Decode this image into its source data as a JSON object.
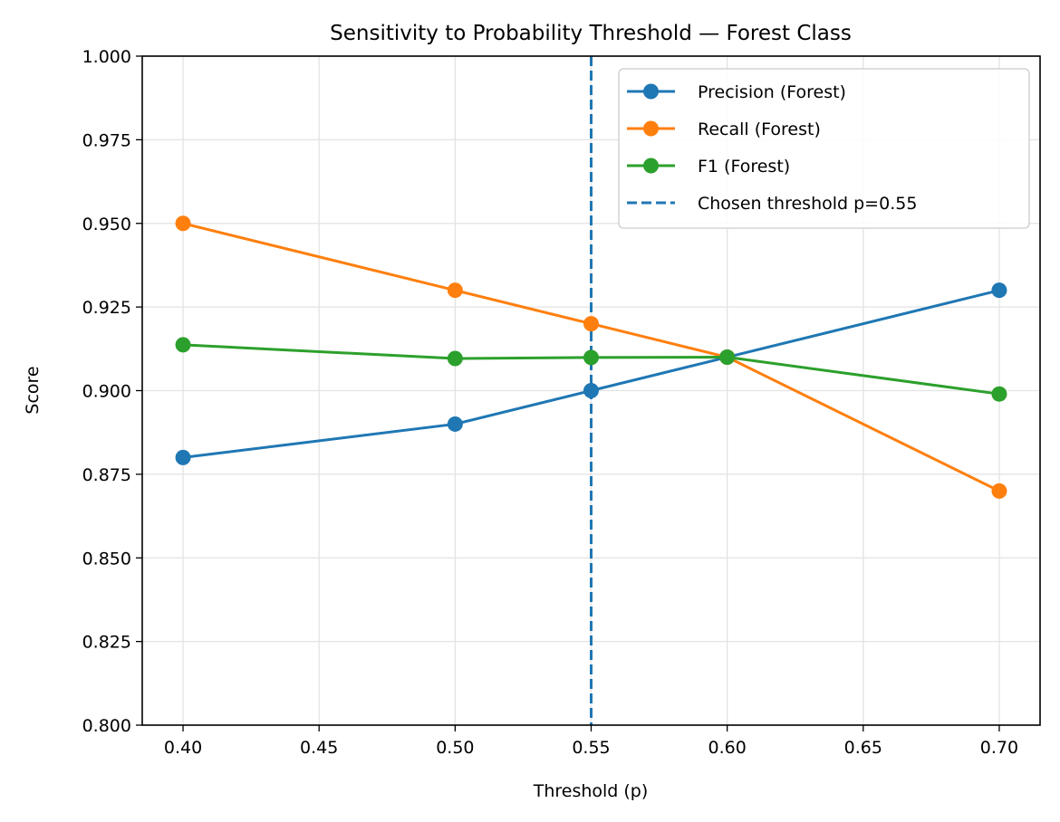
{
  "chart_data": {
    "type": "line",
    "title": "Sensitivity to Probability Threshold — Forest Class",
    "xlabel": "Threshold (p)",
    "ylabel": "Score",
    "xlim": [
      0.385,
      0.715
    ],
    "ylim": [
      0.8,
      1.0
    ],
    "xticks": [
      "0.40",
      "0.45",
      "0.50",
      "0.55",
      "0.60",
      "0.65",
      "0.70"
    ],
    "yticks": [
      "0.800",
      "0.825",
      "0.850",
      "0.875",
      "0.900",
      "0.925",
      "0.950",
      "0.975",
      "1.000"
    ],
    "grid": true,
    "legend_position": "top-right",
    "x": [
      0.4,
      0.5,
      0.55,
      0.6,
      0.7
    ],
    "series": [
      {
        "name": "Precision (Forest)",
        "color": "#1f77b4",
        "values": [
          0.88,
          0.89,
          0.9,
          0.91,
          0.93
        ]
      },
      {
        "name": "Recall (Forest)",
        "color": "#ff7f0e",
        "values": [
          0.95,
          0.93,
          0.92,
          0.91,
          0.87
        ]
      },
      {
        "name": "F1 (Forest)",
        "color": "#2ca02c",
        "values": [
          0.9137,
          0.9096,
          0.9099,
          0.91,
          0.899
        ]
      }
    ],
    "vline": {
      "name": "Chosen threshold p=0.55",
      "x": 0.55,
      "color": "#1f77b4",
      "style": "dashed"
    }
  }
}
